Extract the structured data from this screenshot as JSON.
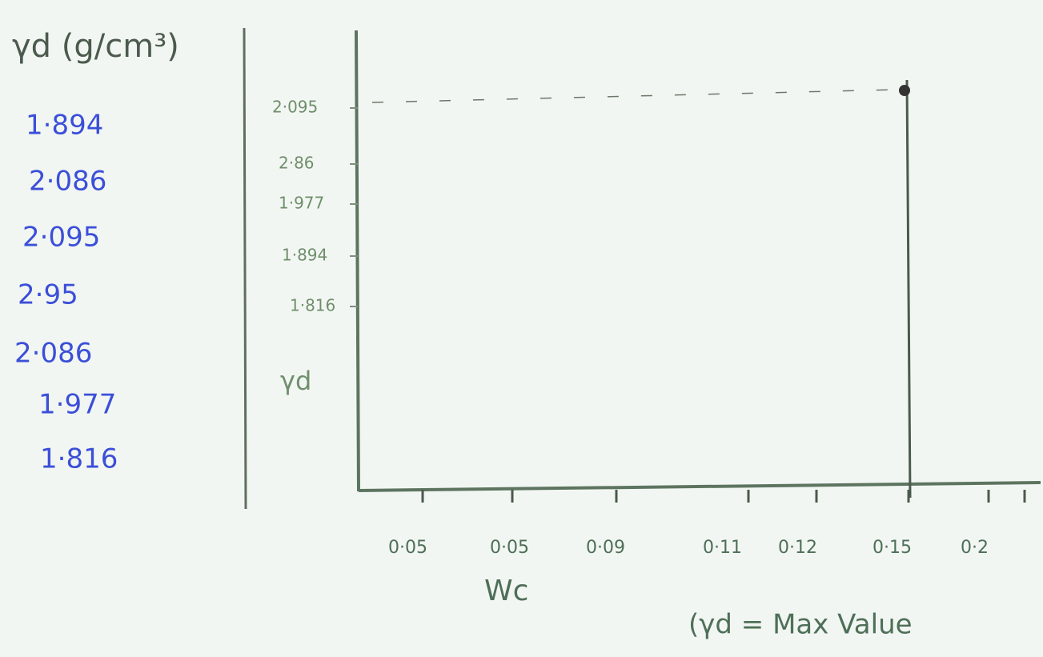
{
  "heading": "γd (g/cm³)",
  "values_list": [
    "1·894",
    "2·086",
    "2·095",
    "2·95",
    "2·086",
    "1·977",
    "1·816"
  ],
  "graph": {
    "y_axis_label": "γd",
    "y_tick_labels": [
      "2·095",
      "2·86",
      "1·977",
      "1·894",
      "1·816"
    ],
    "x_axis_label": "Wc",
    "x_tick_labels": [
      "0·05",
      "0·05",
      "0·09",
      "0·11",
      "0·12",
      "0·15",
      "0·2"
    ],
    "note": "(γd = Max Value"
  }
}
